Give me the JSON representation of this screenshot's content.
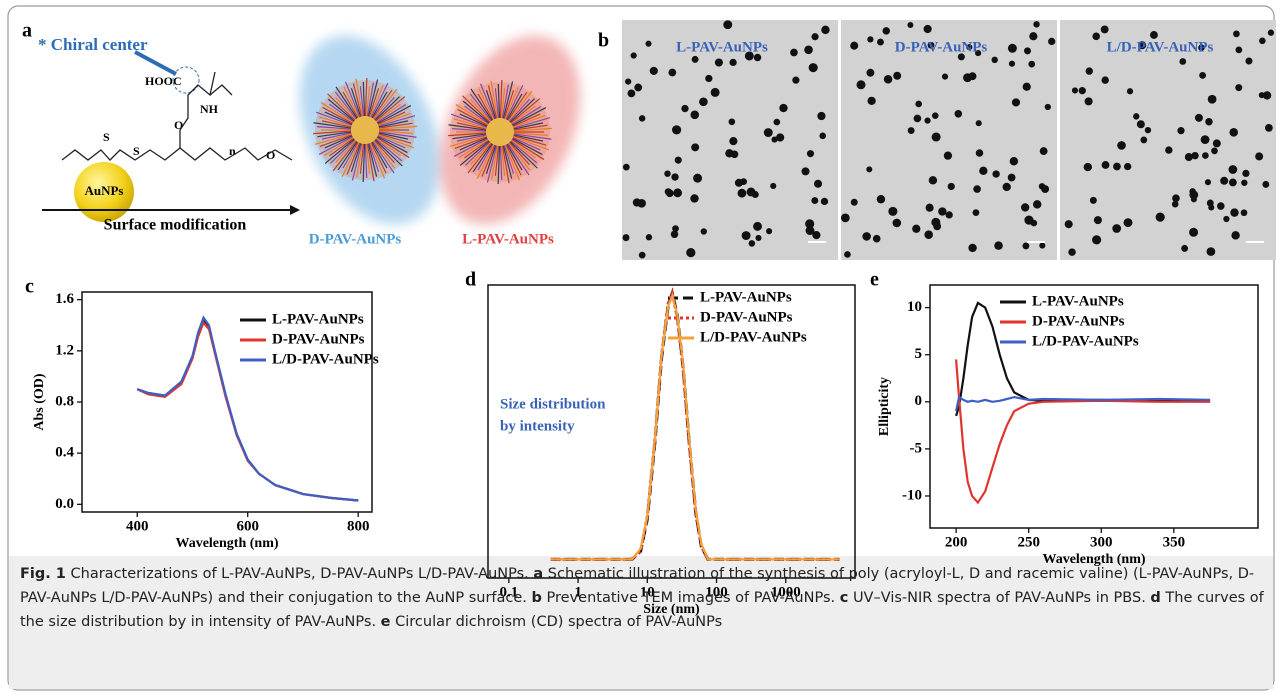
{
  "schematic": {
    "panel": "a",
    "chiral_center": "* Chiral center",
    "hooc": "HOOC",
    "nh": "NH",
    "o1": "O",
    "o2": "O",
    "s1": "S",
    "s2": "S",
    "n": "n",
    "core": "AuNPs",
    "arrow_label": "Surface modification",
    "product_d": "D-PAV-AuNPs",
    "product_l": "L-PAV-AuNPs"
  },
  "tem": {
    "panel": "b",
    "images": [
      "L-PAV-AuNPs",
      "D-PAV-AuNPs",
      "L/D-PAV-AuNPs"
    ]
  },
  "chart_data": [
    {
      "type": "line",
      "panel": "c",
      "x_label": "Wavelength (nm)",
      "y_label": "Abs (OD)",
      "x": [
        400,
        420,
        450,
        480,
        500,
        510,
        520,
        530,
        540,
        560,
        580,
        600,
        620,
        650,
        700,
        750,
        800
      ],
      "series": [
        {
          "name": "L-PAV-AuNPs",
          "color": "#111111",
          "style": "solid",
          "values": [
            0.9,
            0.87,
            0.85,
            0.95,
            1.15,
            1.32,
            1.43,
            1.38,
            1.2,
            0.85,
            0.55,
            0.35,
            0.24,
            0.15,
            0.08,
            0.05,
            0.03
          ]
        },
        {
          "name": "D-PAV-AuNPs",
          "color": "#e0342c",
          "style": "solid",
          "values": [
            0.9,
            0.86,
            0.84,
            0.94,
            1.14,
            1.31,
            1.42,
            1.37,
            1.19,
            0.84,
            0.54,
            0.34,
            0.24,
            0.15,
            0.08,
            0.05,
            0.03
          ]
        },
        {
          "name": "L/D-PAV-AuNPs",
          "color": "#3f5fc4",
          "style": "solid",
          "values": [
            0.9,
            0.87,
            0.85,
            0.96,
            1.16,
            1.34,
            1.46,
            1.4,
            1.21,
            0.86,
            0.55,
            0.35,
            0.24,
            0.15,
            0.08,
            0.05,
            0.03
          ]
        }
      ],
      "xlim": [
        300,
        825
      ],
      "xticks": [
        400,
        600,
        800
      ],
      "ylim": [
        -0.06,
        1.66
      ],
      "yticks": [
        {
          "value": 0,
          "label": "0.0"
        },
        0.4,
        0.8,
        1.2,
        1.6
      ]
    },
    {
      "type": "line",
      "panel": "d",
      "x_label": "Size (nm)",
      "log_x": true,
      "annotation": [
        "Size distribution",
        "by intensity"
      ],
      "x": [
        0.4,
        1,
        3,
        6,
        8,
        10,
        13,
        16,
        20,
        23,
        27,
        33,
        40,
        50,
        60,
        75,
        100,
        1000,
        6000
      ],
      "series": [
        {
          "name": "L-PAV-AuNPs",
          "color": "#111111",
          "style": "dashed",
          "values": [
            0,
            0,
            0,
            0,
            3,
            15,
            45,
            75,
            95,
            100,
            92,
            72,
            45,
            18,
            5,
            0,
            0,
            0,
            0
          ]
        },
        {
          "name": "D-PAV-AuNPs",
          "color": "#e0342c",
          "style": "dotted",
          "values": [
            0,
            0,
            0,
            0,
            3,
            16,
            46,
            76,
            96,
            100,
            91,
            71,
            44,
            17,
            5,
            0,
            0,
            0,
            0
          ]
        },
        {
          "name": "L/D-PAV-AuNPs",
          "color": "#f2a23a",
          "style": "solid",
          "values": [
            0,
            0,
            0,
            0,
            4,
            16,
            46,
            76,
            95,
            99,
            92,
            73,
            46,
            19,
            6,
            0,
            0,
            0,
            0
          ]
        }
      ],
      "xlim": [
        0.05,
        10000
      ],
      "xticks": [
        0.1,
        1,
        10,
        100,
        1000
      ],
      "ylim": [
        -7,
        103
      ]
    },
    {
      "type": "line",
      "panel": "e",
      "x_label": "Wavelength (nm)",
      "y_label": "Ellipticity",
      "x": [
        200,
        202,
        205,
        208,
        211,
        215,
        220,
        225,
        230,
        235,
        240,
        250,
        260,
        300,
        340,
        375
      ],
      "series": [
        {
          "name": "L-PAV-AuNPs",
          "color": "#111111",
          "style": "solid",
          "values": [
            -1.5,
            -0.5,
            2.5,
            6,
            9,
            10.5,
            10,
            8,
            5,
            2.5,
            1,
            0.2,
            0.1,
            0.2,
            0.1,
            0.1
          ]
        },
        {
          "name": "D-PAV-AuNPs",
          "color": "#e0342c",
          "style": "solid",
          "values": [
            4.5,
            0.5,
            -5,
            -8.5,
            -10,
            -10.7,
            -9.5,
            -7,
            -4.5,
            -2.5,
            -1,
            -0.2,
            0,
            0.1,
            0,
            0
          ]
        },
        {
          "name": "L/D-PAV-AuNPs",
          "color": "#3f5fc4",
          "style": "solid",
          "values": [
            -1,
            0.5,
            0.2,
            0,
            0.1,
            0,
            0.2,
            0,
            0.1,
            0.3,
            0.5,
            0.2,
            0.3,
            0.2,
            0.3,
            0.2
          ]
        }
      ],
      "xlim": [
        182,
        408
      ],
      "xticks": [
        200,
        250,
        300,
        350
      ],
      "ylim": [
        -13.4,
        12.4
      ],
      "yticks": [
        -10,
        -5,
        0,
        5,
        10
      ]
    }
  ],
  "caption": {
    "label": "Fig. 1",
    "intro": "Characterizations of L-PAV-AuNPs, D-PAV-AuNPs L/D-PAV-AuNPs.",
    "items": [
      {
        "letter": "a",
        "text": "Schematic illustration of the synthesis of poly (acryloyl-L, D and racemic valine) (L-PAV-AuNPs, D-PAV-AuNPs L/D-PAV-AuNPs) and their conjugation to the AuNP surface."
      },
      {
        "letter": "b",
        "text": "Preventative TEM images of PAV-AuNPs."
      },
      {
        "letter": "c",
        "text": "UV–Vis-NIR spectra of PAV-AuNPs in PBS."
      },
      {
        "letter": "d",
        "text": "The curves of the size distribution by in intensity of PAV-AuNPs."
      },
      {
        "letter": "e",
        "text": "Circular dichroism (CD) spectra of PAV-AuNPs"
      }
    ]
  }
}
